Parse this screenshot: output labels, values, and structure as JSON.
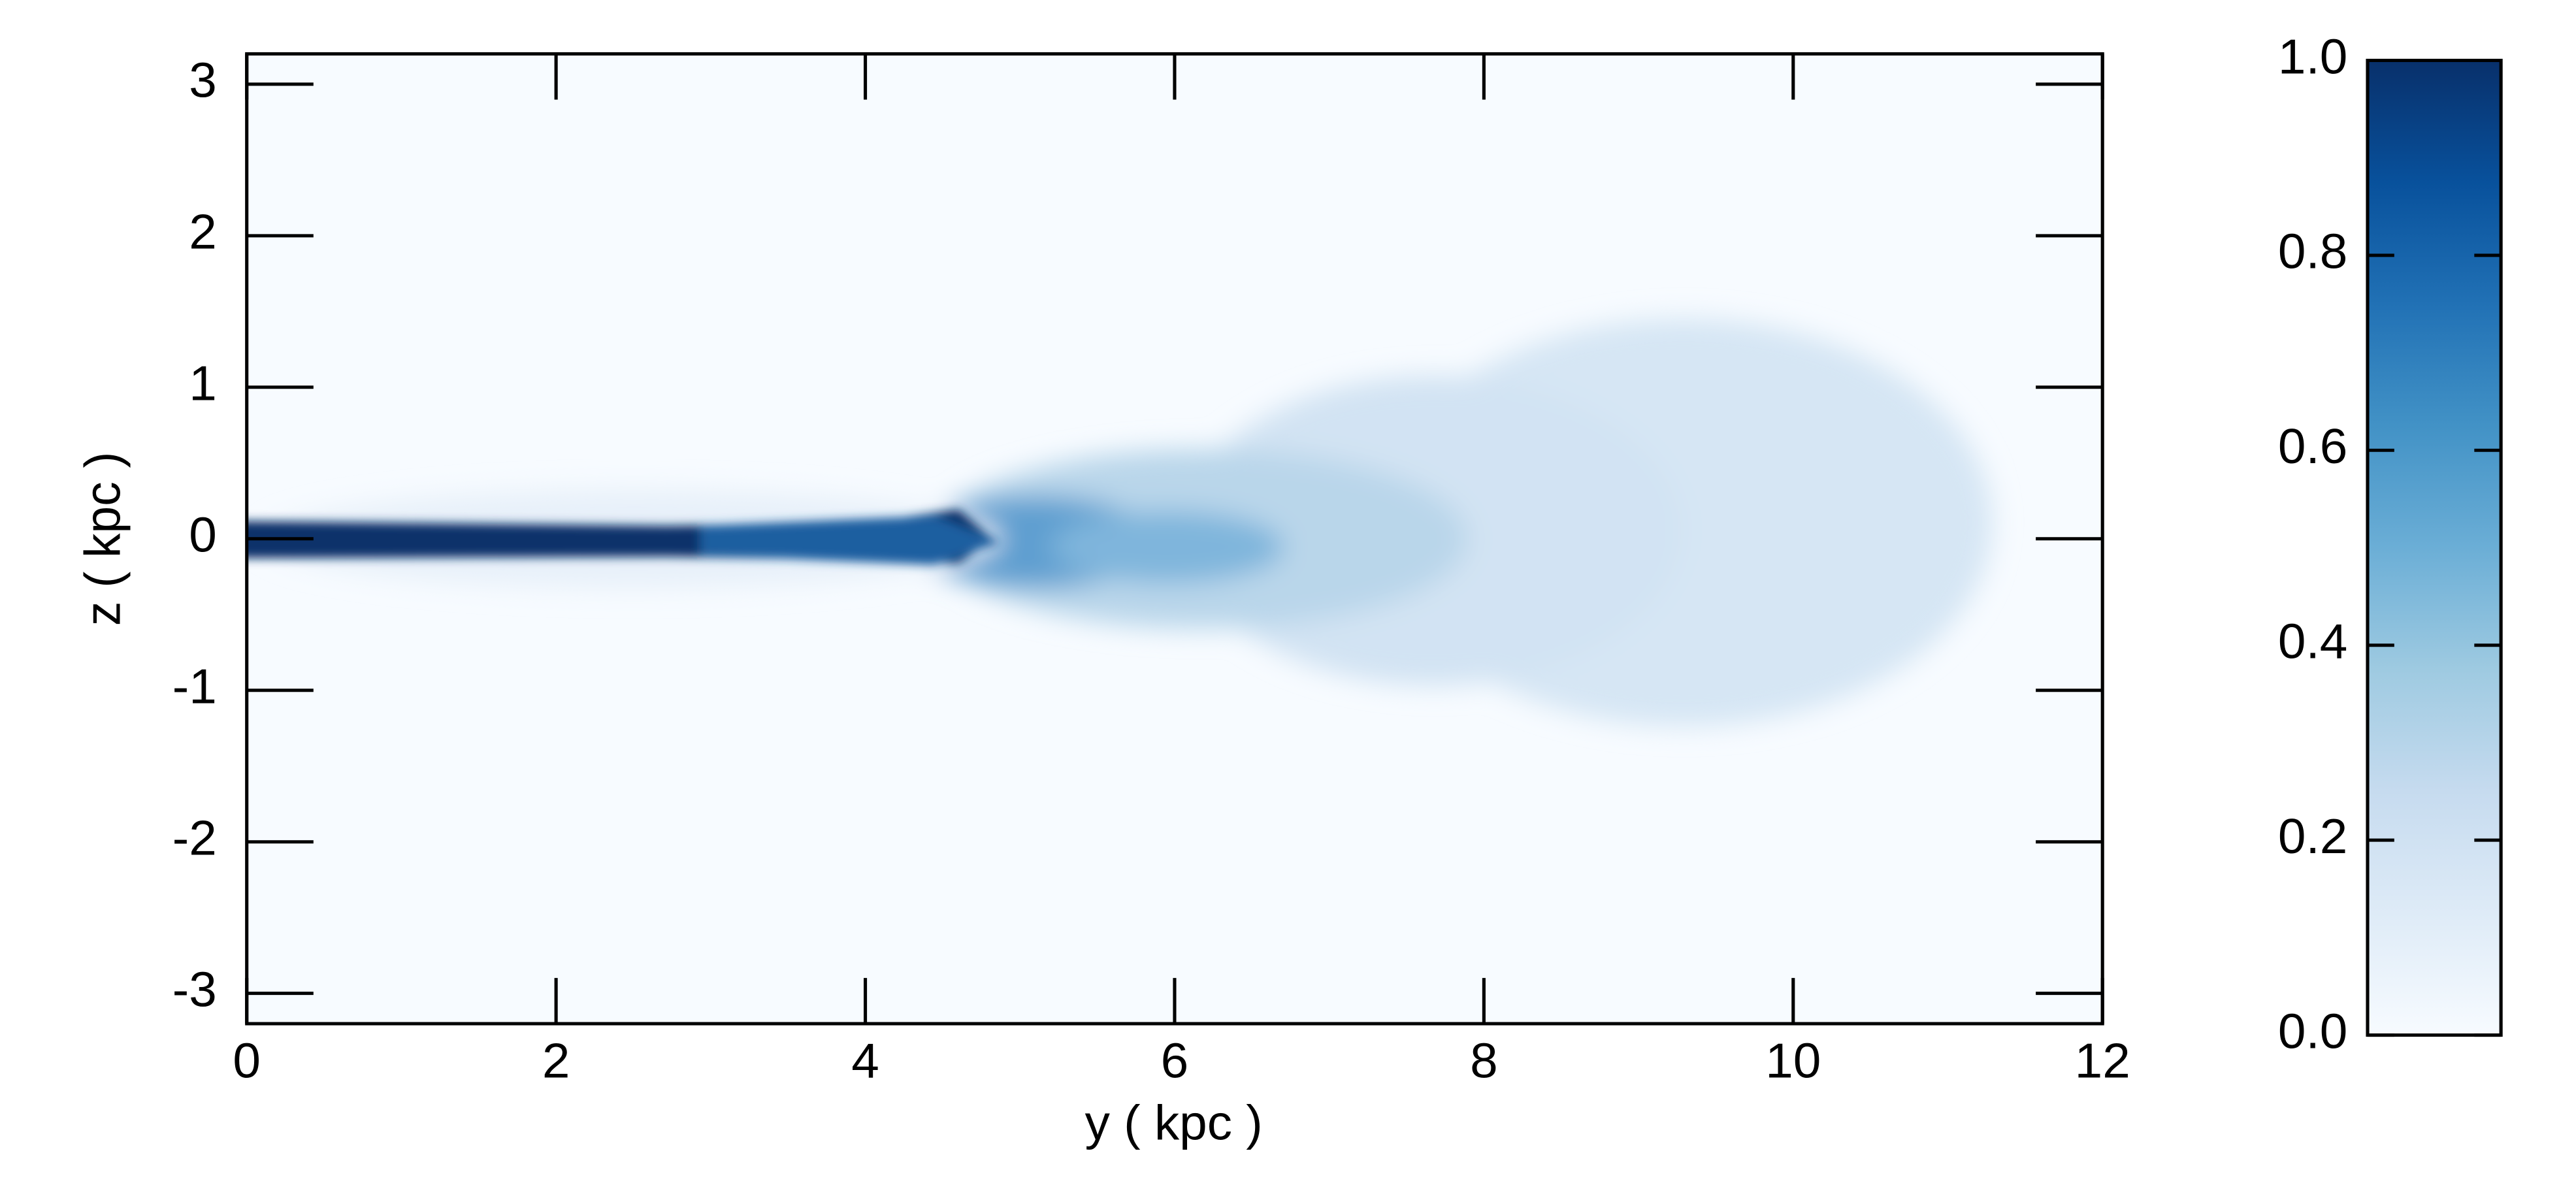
{
  "chart_data": {
    "type": "heatmap",
    "xlabel": "y ( kpc )",
    "ylabel": "z ( kpc )",
    "xlim": [
      0,
      12
    ],
    "ylim": [
      -3.2,
      3.2
    ],
    "xticks": [
      0,
      2,
      4,
      6,
      8,
      10,
      12
    ],
    "yticks": [
      -3,
      -2,
      -1,
      0,
      1,
      2,
      3
    ],
    "colorbar": {
      "lim": [
        0,
        1
      ],
      "ticks": [
        {
          "value": 0,
          "label": "0.0"
        },
        0.2,
        0.4,
        0.6,
        0.8,
        {
          "value": 1,
          "label": "1.0"
        }
      ],
      "colormap": [
        "#f7fbff",
        "#deebf7",
        "#c6dbef",
        "#9ecae1",
        "#6baed6",
        "#4292c6",
        "#2171b5",
        "#08519c",
        "#08306b"
      ]
    }
  }
}
